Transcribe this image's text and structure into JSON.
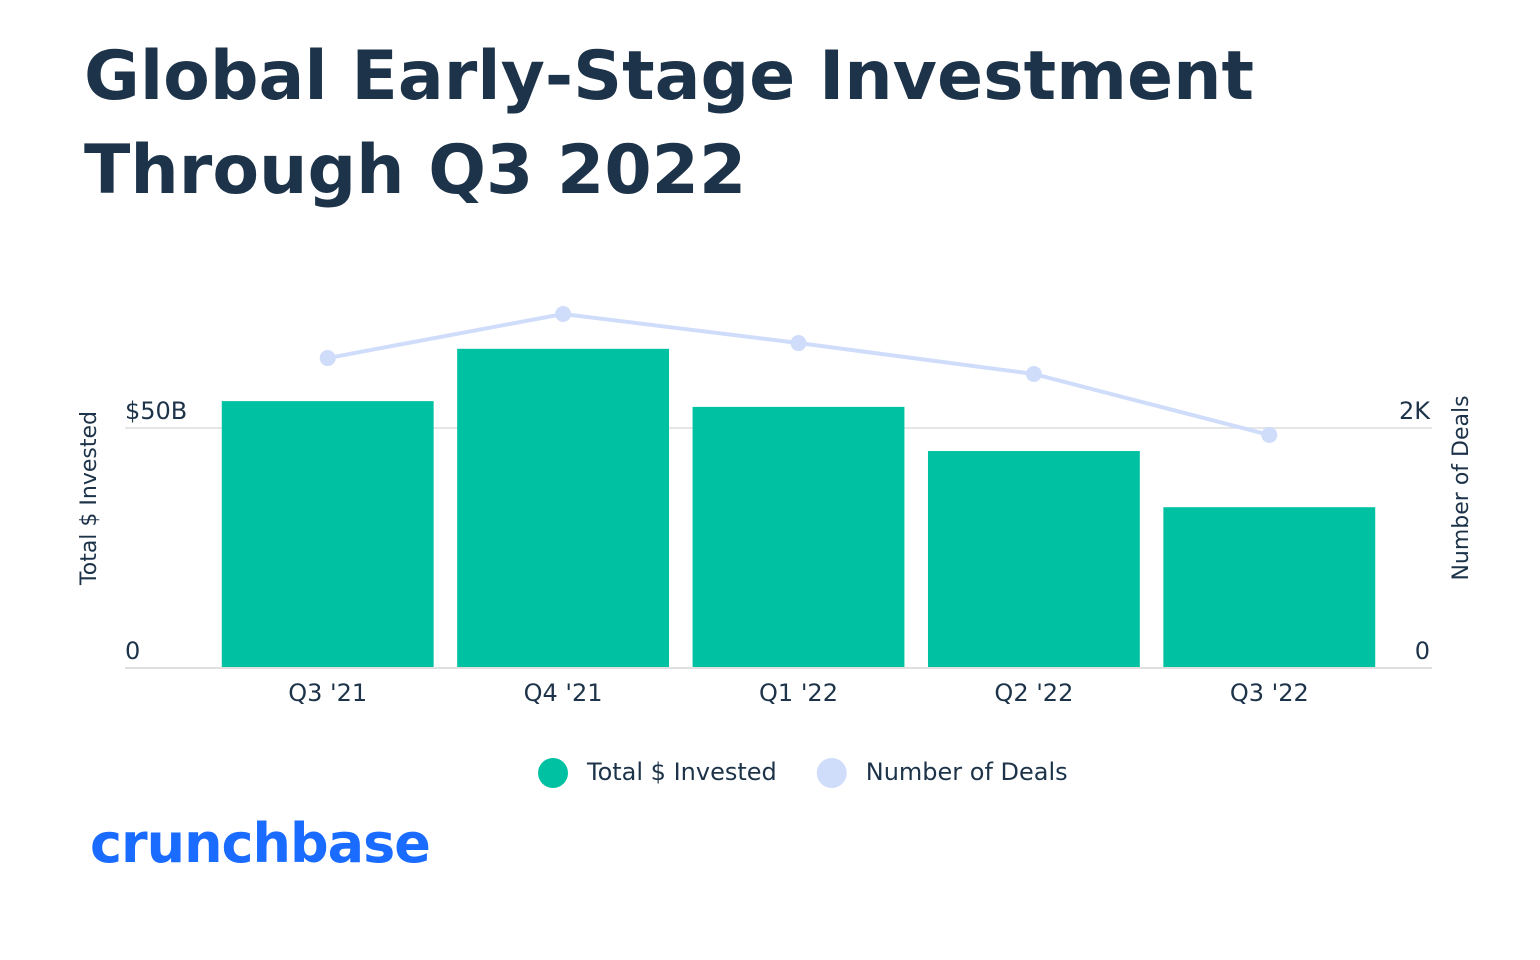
{
  "chart_data": {
    "type": "bar_line",
    "title": "Global Early-Stage Investment Through Q3 2022",
    "brand": "crunchbase",
    "y_label": "Total $ Invested",
    "y2_label": "Number of Deals",
    "categories": [
      "Q3 '21",
      "Q4 '21",
      "Q1 '22",
      "Q2 '22",
      "Q3 '22"
    ],
    "series": [
      {
        "name": "Total $ Invested",
        "type": "bar",
        "color": "#00c2a2",
        "values": [
          55.6,
          66.5,
          54.4,
          45.2,
          33.5
        ]
      },
      {
        "name": "Number of Deals",
        "type": "line",
        "axis": "y2",
        "color": "#cfddfb",
        "values": [
          2583,
          2950,
          2708,
          2450,
          1942
        ]
      }
    ],
    "ylim": [
      0,
      75
    ],
    "yticks": [
      0,
      {
        "value": 50,
        "label": "$50B"
      }
    ],
    "y2lim": [
      0,
      3000
    ],
    "y2ticks": [
      0,
      {
        "value": 2000,
        "label": "2K"
      }
    ],
    "grid": true,
    "legend": "bottom"
  }
}
